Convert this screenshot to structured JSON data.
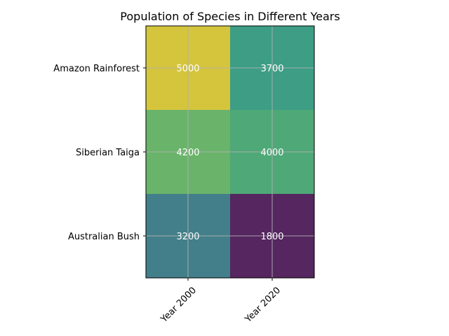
{
  "chart_data": {
    "type": "heatmap",
    "title": "Population of Species in Different Years",
    "xlabel": "",
    "ylabel": "",
    "columns": [
      "Year 2000",
      "Year 2020"
    ],
    "rows": [
      "Amazon Rainforest",
      "Siberian Taiga",
      "Australian Bush"
    ],
    "values": [
      [
        5000,
        3700
      ],
      [
        4200,
        4000
      ],
      [
        3200,
        1800
      ]
    ],
    "value_labels": [
      [
        "5000",
        "3700"
      ],
      [
        "4200",
        "4000"
      ],
      [
        "3200",
        "1800"
      ]
    ],
    "colormap": "viridis",
    "vmin": 1800,
    "vmax": 5000,
    "grid": true,
    "x_tick_rotation": 45,
    "cell_colors": [
      [
        "#d5c53c",
        "#3d9e85"
      ],
      [
        "#69b46a",
        "#4ea877"
      ],
      [
        "#427f8a",
        "#55265f"
      ]
    ]
  }
}
